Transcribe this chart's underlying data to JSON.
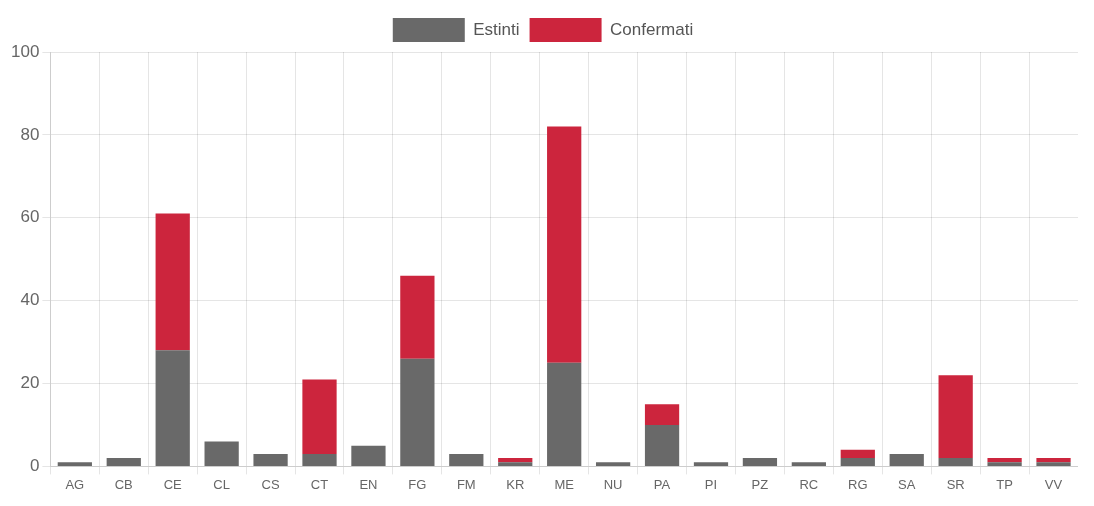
{
  "chart_data": {
    "type": "bar",
    "stacked": true,
    "legend": "top",
    "grid": true,
    "categories": [
      "AG",
      "CB",
      "CE",
      "CL",
      "CS",
      "CT",
      "EN",
      "FG",
      "FM",
      "KR",
      "ME",
      "NU",
      "PA",
      "PI",
      "PZ",
      "RC",
      "RG",
      "SA",
      "SR",
      "TP",
      "VV"
    ],
    "series": [
      {
        "name": "Estinti",
        "color": "#696969",
        "values": [
          1,
          2,
          28,
          6,
          3,
          3,
          5,
          26,
          3,
          1,
          25,
          1,
          10,
          1,
          2,
          1,
          2,
          3,
          2,
          1,
          1
        ]
      },
      {
        "name": "Confermati",
        "color": "#cc253d",
        "values": [
          0,
          0,
          33,
          0,
          0,
          18,
          0,
          20,
          0,
          1,
          57,
          0,
          5,
          0,
          0,
          0,
          2,
          0,
          20,
          1,
          1
        ]
      }
    ],
    "ylim": [
      0,
      100
    ],
    "yticks": [
      0,
      20,
      40,
      60,
      80,
      100
    ]
  }
}
